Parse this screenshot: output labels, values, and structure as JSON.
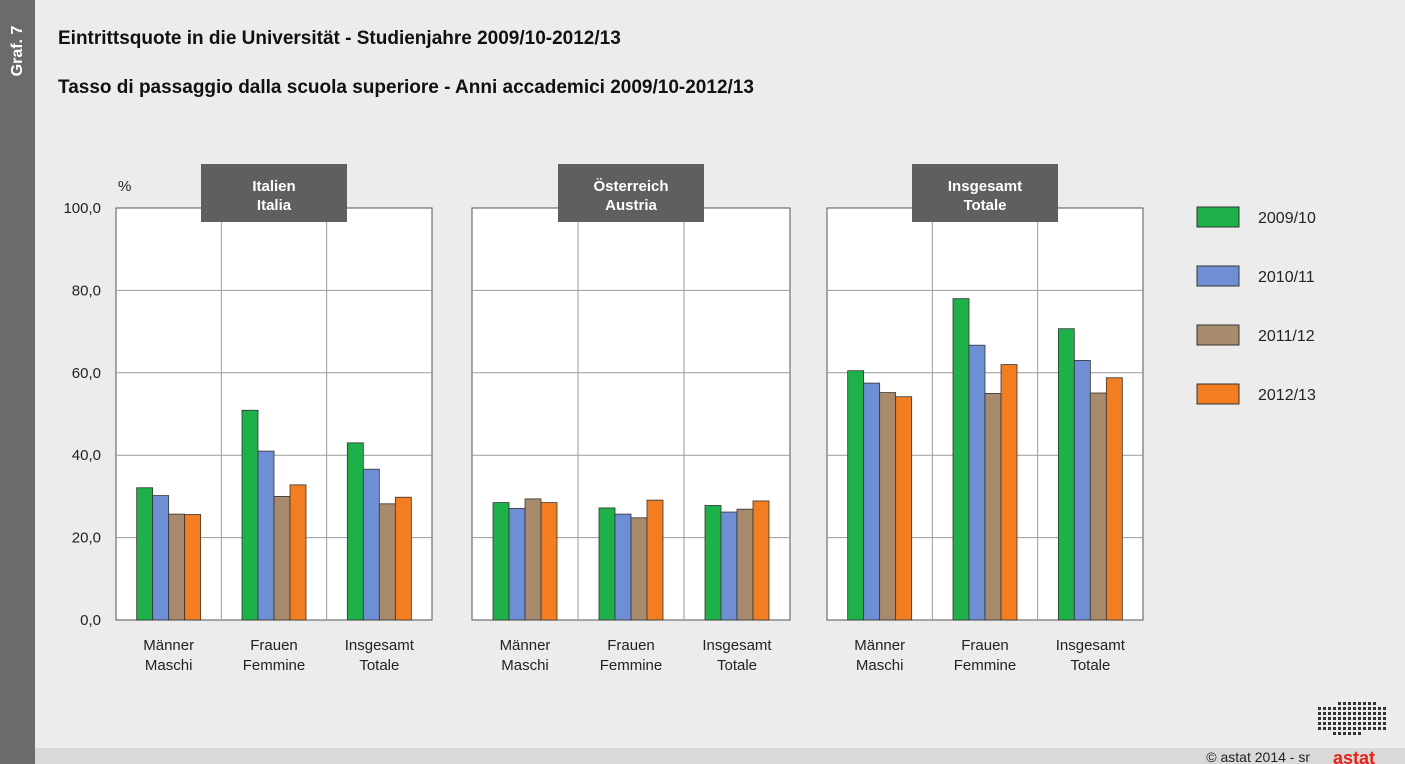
{
  "sidebar": {
    "label": "Graf. 7"
  },
  "header": {
    "title_de": "Eintrittsquote in die Universität - Studienjahre 2009/10-2012/13",
    "title_it": "Tasso di passaggio dalla scuola superiore - Anni accademici 2009/10-2012/13"
  },
  "footer": {
    "copyright": "© astat 2014 - sr",
    "logo": "astat"
  },
  "colors": {
    "2009/10": "#1eb14a",
    "2010/11": "#6f8fd4",
    "2011/12": "#a88b6c",
    "2012/13": "#f37e22",
    "panel_label_bg": "#5f5f5f"
  },
  "chart_data": {
    "type": "bar",
    "yunit": "%",
    "ylim": [
      0,
      100
    ],
    "yticks": [
      "0,0",
      "20,0",
      "40,0",
      "60,0",
      "80,0",
      "100,0"
    ],
    "grid": true,
    "legend_position": "right",
    "series_names": [
      "2009/10",
      "2010/11",
      "2011/12",
      "2012/13"
    ],
    "panels": [
      {
        "label_line1": "Italien",
        "label_line2": "Italia",
        "categories": [
          {
            "line1": "Männer",
            "line2": "Maschi",
            "values": [
              32.1,
              30.2,
              25.7,
              25.6
            ]
          },
          {
            "line1": "Frauen",
            "line2": "Femmine",
            "values": [
              50.9,
              41.0,
              30.0,
              32.8
            ]
          },
          {
            "line1": "Insgesamt",
            "line2": "Totale",
            "values": [
              43.0,
              36.6,
              28.2,
              29.8
            ]
          }
        ]
      },
      {
        "label_line1": "Österreich",
        "label_line2": "Austria",
        "categories": [
          {
            "line1": "Männer",
            "line2": "Maschi",
            "values": [
              28.5,
              27.1,
              29.4,
              28.5
            ]
          },
          {
            "line1": "Frauen",
            "line2": "Femmine",
            "values": [
              27.2,
              25.7,
              24.8,
              29.1
            ]
          },
          {
            "line1": "Insgesamt",
            "line2": "Totale",
            "values": [
              27.8,
              26.2,
              26.9,
              28.9
            ]
          }
        ]
      },
      {
        "label_line1": "Insgesamt",
        "label_line2": "Totale",
        "categories": [
          {
            "line1": "Männer",
            "line2": "Maschi",
            "values": [
              60.5,
              57.5,
              55.2,
              54.2
            ]
          },
          {
            "line1": "Frauen",
            "line2": "Femmine",
            "values": [
              78.0,
              66.7,
              55.0,
              62.0
            ]
          },
          {
            "line1": "Insgesamt",
            "line2": "Totale",
            "values": [
              70.7,
              63.0,
              55.1,
              58.8
            ]
          }
        ]
      }
    ]
  }
}
